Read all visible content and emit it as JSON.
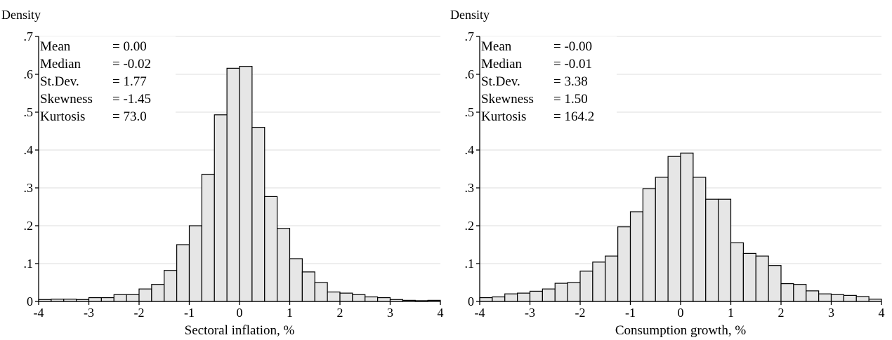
{
  "chart_data": [
    {
      "type": "bar",
      "ylabel": "Density",
      "xlabel": "Sectoral inflation, %",
      "xlim": [
        -4,
        4
      ],
      "ylim": [
        0,
        0.7
      ],
      "x_ticks": [
        "-4",
        "-3",
        "-2",
        "-1",
        "0",
        "1",
        "2",
        "3",
        "4"
      ],
      "y_ticks": [
        "0",
        ".1",
        ".2",
        ".3",
        ".4",
        ".5",
        ".6",
        ".7"
      ],
      "grid": true,
      "bin_width": 0.25,
      "bin_start": -4,
      "values": [
        0.005,
        0.006,
        0.006,
        0.005,
        0.01,
        0.01,
        0.018,
        0.018,
        0.033,
        0.045,
        0.082,
        0.15,
        0.2,
        0.336,
        0.493,
        0.616,
        0.621,
        0.46,
        0.277,
        0.193,
        0.113,
        0.078,
        0.05,
        0.025,
        0.022,
        0.018,
        0.012,
        0.01,
        0.005,
        0.003,
        0.002,
        0.003
      ],
      "stats": [
        {
          "label": "Mean",
          "value": "= 0.00"
        },
        {
          "label": "Median",
          "value": "= -0.02"
        },
        {
          "label": "St.Dev.",
          "value": "= 1.77"
        },
        {
          "label": "Skewness",
          "value": "= -1.45"
        },
        {
          "label": "Kurtosis",
          "value": "= 73.0"
        }
      ]
    },
    {
      "type": "bar",
      "ylabel": "Density",
      "xlabel": "Consumption growth, %",
      "xlim": [
        -4,
        4
      ],
      "ylim": [
        0,
        0.7
      ],
      "x_ticks": [
        "-4",
        "-3",
        "-2",
        "-1",
        "0",
        "1",
        "2",
        "3",
        "4"
      ],
      "y_ticks": [
        "0",
        ".1",
        ".2",
        ".3",
        ".4",
        ".5",
        ".6",
        ".7"
      ],
      "grid": true,
      "bin_width": 0.25,
      "bin_start": -4,
      "values": [
        0.01,
        0.012,
        0.02,
        0.022,
        0.027,
        0.033,
        0.048,
        0.05,
        0.08,
        0.104,
        0.12,
        0.197,
        0.237,
        0.298,
        0.328,
        0.383,
        0.392,
        0.328,
        0.27,
        0.27,
        0.155,
        0.127,
        0.12,
        0.095,
        0.047,
        0.045,
        0.028,
        0.02,
        0.018,
        0.016,
        0.013,
        0.006
      ],
      "stats": [
        {
          "label": "Mean",
          "value": "= -0.00"
        },
        {
          "label": "Median",
          "value": "= -0.01"
        },
        {
          "label": "St.Dev.",
          "value": "= 3.38"
        },
        {
          "label": "Skewness",
          "value": "= 1.50"
        },
        {
          "label": "Kurtosis",
          "value": "= 164.2"
        }
      ]
    }
  ]
}
